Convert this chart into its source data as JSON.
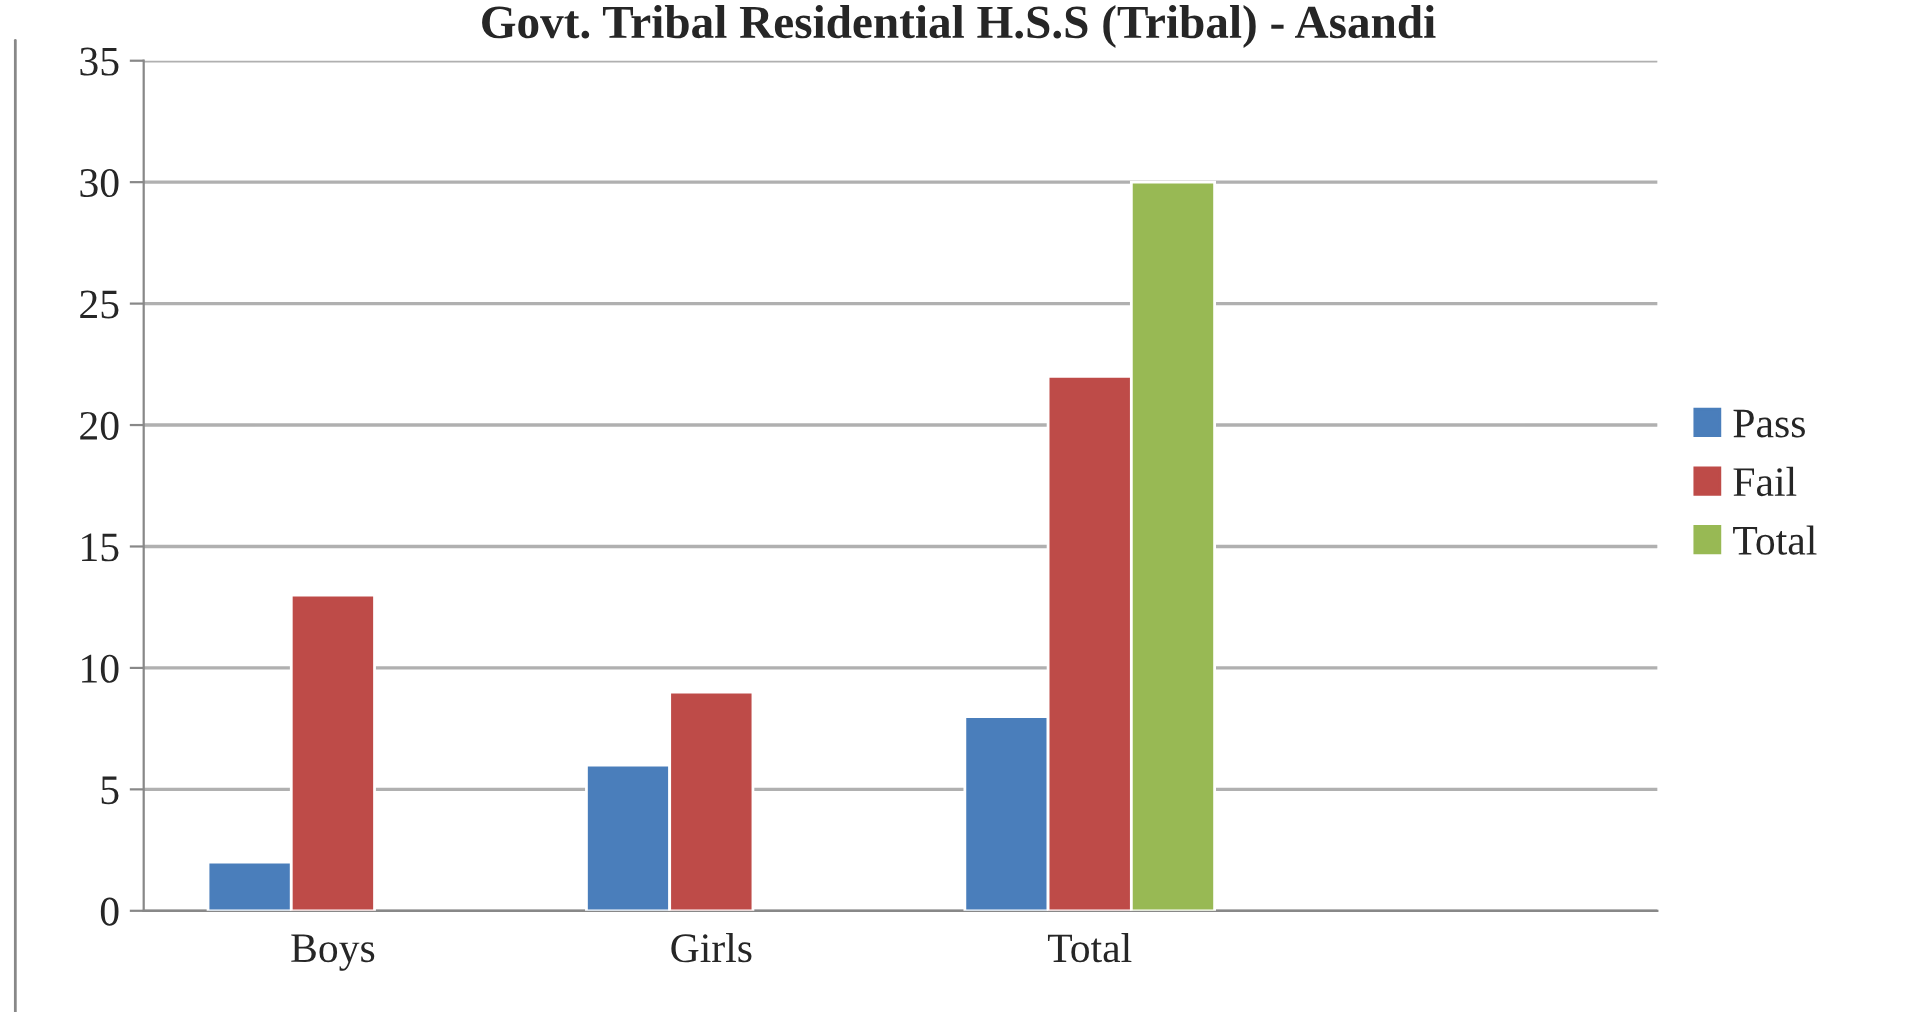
{
  "chart_data": {
    "type": "bar",
    "title": "Govt. Tribal Residential H.S.S (Tribal) - Asandi",
    "categories": [
      "Boys",
      "Girls",
      "Total",
      null
    ],
    "series": [
      {
        "name": "Pass",
        "color": "#4a7ebb",
        "values": [
          2,
          6,
          8,
          null
        ]
      },
      {
        "name": "Fail",
        "color": "#be4b48",
        "values": [
          13,
          9,
          22,
          null
        ]
      },
      {
        "name": "Total",
        "color": "#98b954",
        "values": [
          null,
          null,
          30,
          null
        ]
      }
    ],
    "ylim": [
      0,
      35
    ],
    "yticks": [
      0,
      5,
      10,
      15,
      20,
      25,
      30,
      35
    ],
    "grid": "y",
    "legend": "right"
  }
}
